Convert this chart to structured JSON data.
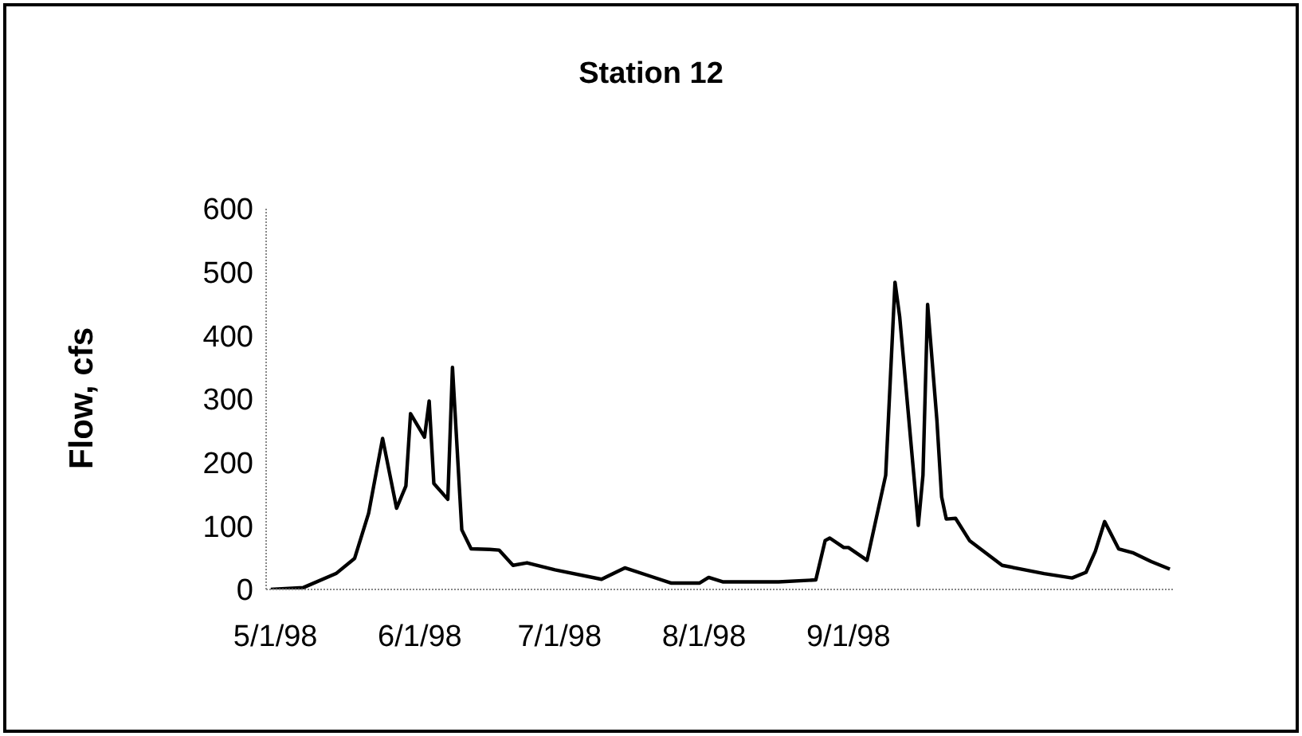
{
  "chart_data": {
    "type": "line",
    "title": "Station 12",
    "ylabel": "Flow, cfs",
    "x": [
      "1998-04-30",
      "1998-05-07",
      "1998-05-14",
      "1998-05-18",
      "1998-05-21",
      "1998-05-24",
      "1998-05-27",
      "1998-05-29",
      "1998-05-30",
      "1998-06-02",
      "1998-06-03",
      "1998-06-04",
      "1998-06-07",
      "1998-06-08",
      "1998-06-10",
      "1998-06-12",
      "1998-06-16",
      "1998-06-18",
      "1998-06-21",
      "1998-06-24",
      "1998-06-30",
      "1998-07-10",
      "1998-07-15",
      "1998-07-20",
      "1998-07-25",
      "1998-07-31",
      "1998-08-02",
      "1998-08-05",
      "1998-08-17",
      "1998-08-25",
      "1998-08-27",
      "1998-08-28",
      "1998-08-31",
      "1998-09-01",
      "1998-09-05",
      "1998-09-09",
      "1998-09-11",
      "1998-09-12",
      "1998-09-16",
      "1998-09-17",
      "1998-09-18",
      "1998-09-20",
      "1998-09-21",
      "1998-09-22",
      "1998-09-24",
      "1998-09-27",
      "1998-10-04",
      "1998-10-13",
      "1998-10-19",
      "1998-10-22",
      "1998-10-24",
      "1998-10-26",
      "1998-10-29",
      "1998-11-01",
      "1998-11-05",
      "1998-11-09"
    ],
    "series": [
      {
        "color": "#000000",
        "values": [
          0,
          3,
          25,
          49,
          120,
          238,
          128,
          163,
          277,
          240,
          297,
          167,
          142,
          350,
          94,
          64,
          63,
          62,
          38,
          42,
          31,
          16,
          34,
          22,
          10,
          10,
          19,
          12,
          12,
          15,
          77,
          81,
          66,
          66,
          46,
          180,
          484,
          430,
          101,
          180,
          449,
          266,
          146,
          111,
          112,
          77,
          38,
          25,
          18,
          27,
          60,
          107,
          64,
          58,
          44,
          32
        ]
      }
    ],
    "xlim": [
      "1998-04-29",
      "1998-11-10"
    ],
    "xticks": [
      {
        "value": "1998-05-01",
        "label": "5/1/98"
      },
      {
        "value": "1998-06-01",
        "label": "6/1/98"
      },
      {
        "value": "1998-07-01",
        "label": "7/1/98"
      },
      {
        "value": "1998-08-01",
        "label": "8/1/98"
      },
      {
        "value": "1998-09-01",
        "label": "9/1/98"
      }
    ],
    "ylim": [
      0,
      600
    ],
    "yticks": [
      0,
      100,
      200,
      300,
      400,
      500,
      600
    ],
    "grid": false,
    "legend": false,
    "marker": "none",
    "line_style": "solid"
  }
}
